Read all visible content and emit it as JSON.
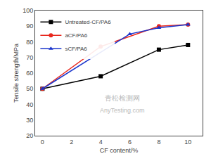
{
  "chart_data": {
    "type": "line",
    "xlabel": "CF content/%",
    "ylabel": "Tensile strength/MPa",
    "series": [
      {
        "name": "Untreated-CF/PA6",
        "color": "#000000",
        "marker": "square",
        "line_style": "solid",
        "x": [
          0,
          4,
          8,
          10
        ],
        "values": [
          50,
          58,
          75,
          78
        ]
      },
      {
        "name": "aCF/PA6",
        "color": "#e8281e",
        "marker": "circle",
        "line_style": "solid",
        "x": [
          0,
          4,
          8,
          10
        ],
        "values": [
          50,
          77,
          90,
          91
        ]
      },
      {
        "name": "sCF/PA6",
        "color": "#1a35cc",
        "marker": "triangle",
        "line_style": "solid",
        "x": [
          0,
          6,
          8,
          10
        ],
        "values": [
          50,
          85,
          89,
          91
        ]
      }
    ],
    "xlim": [
      -0.5,
      11.0
    ],
    "ylim": [
      20,
      100
    ],
    "xticks": [
      0,
      2,
      4,
      6,
      8,
      10
    ],
    "yticks": [
      20,
      30,
      40,
      50,
      60,
      70,
      80,
      90,
      100
    ],
    "legend": "upper left",
    "grid": false,
    "annotations": [
      "青松检测网",
      "AnyTesting.com"
    ]
  }
}
